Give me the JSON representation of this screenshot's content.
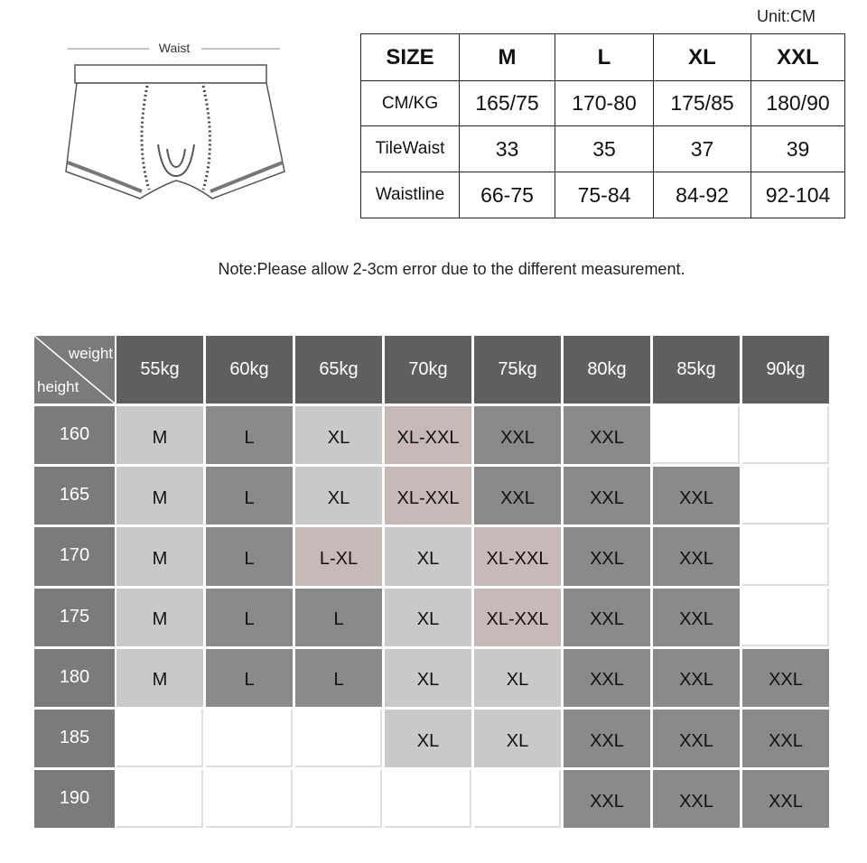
{
  "unit": "Unit:CM",
  "diagram": {
    "label": "Waist"
  },
  "size_table": {
    "header": [
      "SIZE",
      "M",
      "L",
      "XL",
      "XXL"
    ],
    "rows": [
      [
        "CM/KG",
        "165/75",
        "170-80",
        "175/85",
        "180/90"
      ],
      [
        "TileWaist",
        "33",
        "35",
        "37",
        "39"
      ],
      [
        "Waistline",
        "66-75",
        "75-84",
        "84-92",
        "92-104"
      ]
    ]
  },
  "note": "Note:Please allow 2-3cm error due to the different measurement.",
  "size_grid": {
    "corner_top": "weight",
    "corner_bottom": "height",
    "columns": [
      "55kg",
      "60kg",
      "65kg",
      "70kg",
      "75kg",
      "80kg",
      "85kg",
      "90kg"
    ],
    "rows": [
      {
        "height": "160",
        "cells": [
          {
            "text": "M",
            "fill": "#c9c9c9"
          },
          {
            "text": "L",
            "fill": "#8a8a8a"
          },
          {
            "text": "XL",
            "fill": "#c9c9c9"
          },
          {
            "text": "XL-XXL",
            "fill": "#c8b9b9"
          },
          {
            "text": "XXL",
            "fill": "#8a8a8a"
          },
          {
            "text": "XXL",
            "fill": "#8a8a8a"
          },
          null,
          null
        ]
      },
      {
        "height": "165",
        "cells": [
          {
            "text": "M",
            "fill": "#c9c9c9"
          },
          {
            "text": "L",
            "fill": "#8a8a8a"
          },
          {
            "text": "XL",
            "fill": "#c9c9c9"
          },
          {
            "text": "XL-XXL",
            "fill": "#c8b9b9"
          },
          {
            "text": "XXL",
            "fill": "#8a8a8a"
          },
          {
            "text": "XXL",
            "fill": "#8a8a8a"
          },
          {
            "text": "XXL",
            "fill": "#8a8a8a"
          },
          null
        ]
      },
      {
        "height": "170",
        "cells": [
          {
            "text": "M",
            "fill": "#c9c9c9"
          },
          {
            "text": "L",
            "fill": "#8a8a8a"
          },
          {
            "text": "L-XL",
            "fill": "#c8b9b9"
          },
          {
            "text": "XL",
            "fill": "#c9c9c9"
          },
          {
            "text": "XL-XXL",
            "fill": "#c8b9b9"
          },
          {
            "text": "XXL",
            "fill": "#8a8a8a"
          },
          {
            "text": "XXL",
            "fill": "#8a8a8a"
          },
          null
        ]
      },
      {
        "height": "175",
        "cells": [
          {
            "text": "M",
            "fill": "#c9c9c9"
          },
          {
            "text": "L",
            "fill": "#8a8a8a"
          },
          {
            "text": "L",
            "fill": "#8a8a8a"
          },
          {
            "text": "XL",
            "fill": "#c9c9c9"
          },
          {
            "text": "XL-XXL",
            "fill": "#c8b9b9"
          },
          {
            "text": "XXL",
            "fill": "#8a8a8a"
          },
          {
            "text": "XXL",
            "fill": "#8a8a8a"
          },
          null
        ]
      },
      {
        "height": "180",
        "cells": [
          {
            "text": "M",
            "fill": "#c9c9c9"
          },
          {
            "text": "L",
            "fill": "#8a8a8a"
          },
          {
            "text": "L",
            "fill": "#8a8a8a"
          },
          {
            "text": "XL",
            "fill": "#c9c9c9"
          },
          {
            "text": "XL",
            "fill": "#c9c9c9"
          },
          {
            "text": "XXL",
            "fill": "#8a8a8a"
          },
          {
            "text": "XXL",
            "fill": "#8a8a8a"
          },
          {
            "text": "XXL",
            "fill": "#8a8a8a"
          }
        ]
      },
      {
        "height": "185",
        "cells": [
          null,
          null,
          null,
          {
            "text": "XL",
            "fill": "#c9c9c9"
          },
          {
            "text": "XL",
            "fill": "#c9c9c9"
          },
          {
            "text": "XXL",
            "fill": "#8a8a8a"
          },
          {
            "text": "XXL",
            "fill": "#8a8a8a"
          },
          {
            "text": "XXL",
            "fill": "#8a8a8a"
          }
        ]
      },
      {
        "height": "190",
        "cells": [
          null,
          null,
          null,
          null,
          null,
          {
            "text": "XXL",
            "fill": "#8a8a8a"
          },
          {
            "text": "XXL",
            "fill": "#8a8a8a"
          },
          {
            "text": "XXL",
            "fill": "#8a8a8a"
          }
        ]
      }
    ]
  }
}
